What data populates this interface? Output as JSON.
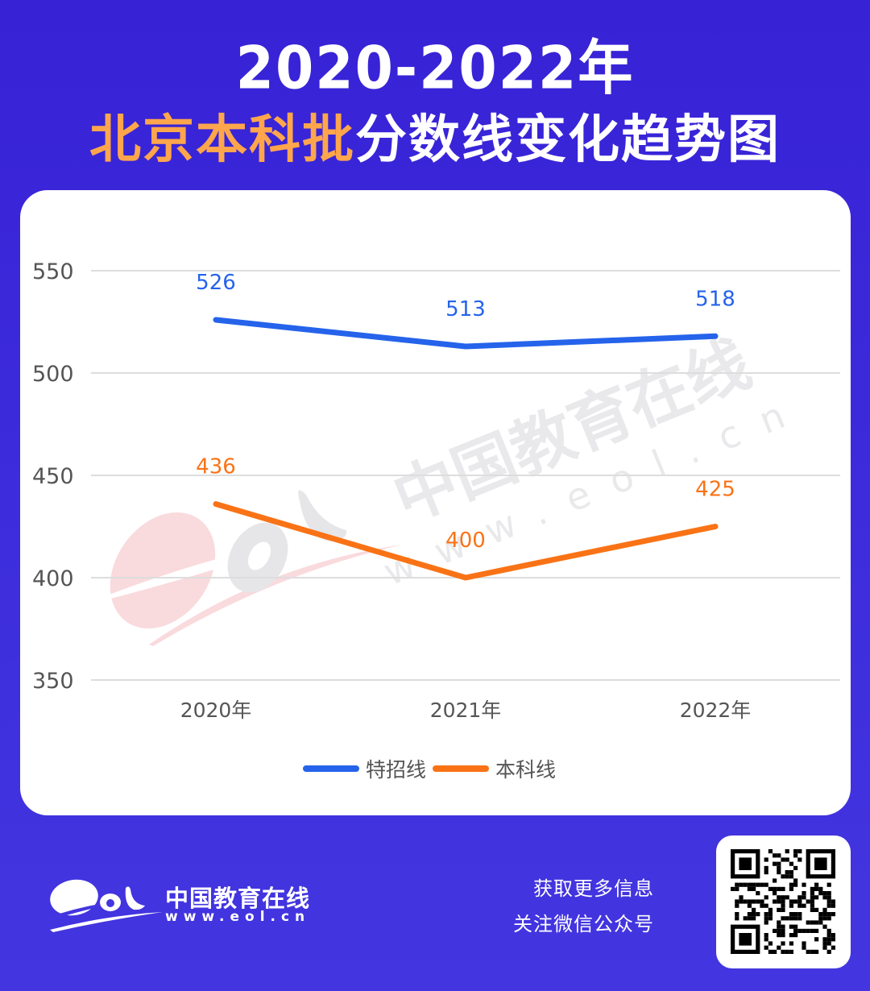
{
  "header": {
    "title_line1": "2020-2022年",
    "title_line2_highlight": "北京本科批",
    "title_line2_rest": "分数线变化趋势图"
  },
  "colors": {
    "background_top": "#3822D6",
    "background_bottom": "#4336E0",
    "highlight_title": "#FFA64D",
    "series_special": "#2563EB",
    "series_undergrad": "#F97316",
    "grid": "#DDDDDD",
    "axis_text": "#555555"
  },
  "chart_data": {
    "type": "line",
    "title": "2020-2022年北京本科批分数线变化趋势图",
    "categories": [
      "2020年",
      "2021年",
      "2022年"
    ],
    "series": [
      {
        "name": "特招线",
        "values": [
          526,
          513,
          518
        ],
        "color": "#2563EB"
      },
      {
        "name": "本科线",
        "values": [
          436,
          400,
          425
        ],
        "color": "#F97316"
      }
    ],
    "xlabel": "",
    "ylabel": "",
    "ylim": [
      350,
      550
    ],
    "yticks": [
      550,
      500,
      450,
      400,
      350
    ],
    "grid": true,
    "legend_position": "bottom",
    "data_labels": true
  },
  "legend": {
    "items": [
      {
        "label": "特招线"
      },
      {
        "label": "本科线"
      }
    ]
  },
  "watermark": {
    "cn": "中国教育在线",
    "url": "www.eol.cn"
  },
  "footer": {
    "brand_cn": "中国教育在线",
    "brand_url": "www.eol.cn",
    "follow_line1": "获取更多信息",
    "follow_line2": "关注微信公众号",
    "qr_label": "wechat-qr-code"
  }
}
